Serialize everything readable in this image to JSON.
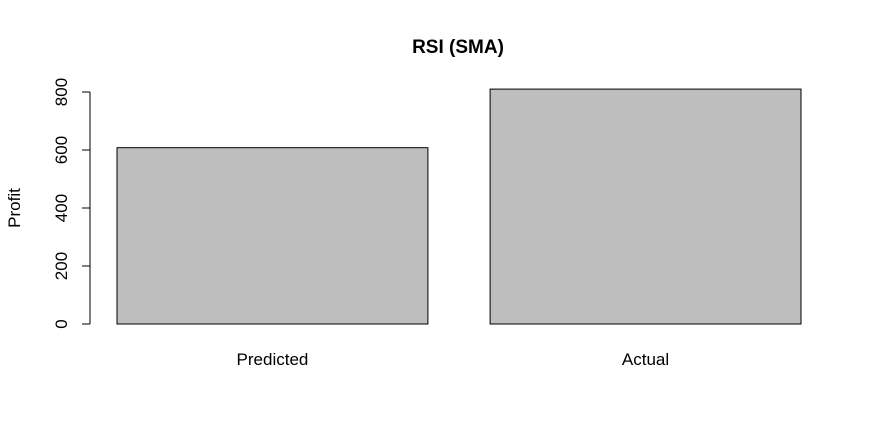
{
  "chart_data": {
    "type": "bar",
    "title": "RSI (SMA)",
    "xlabel": "",
    "ylabel": "Profit",
    "categories": [
      "Predicted",
      "Actual"
    ],
    "values": [
      608,
      810
    ],
    "ylim": [
      0,
      800
    ],
    "yticks": [
      0,
      200,
      400,
      600,
      800
    ],
    "ytick_labels": [
      "0",
      "200",
      "400",
      "600",
      "800"
    ],
    "grid": false,
    "legend": "none",
    "bar_color": "#bebebe"
  }
}
